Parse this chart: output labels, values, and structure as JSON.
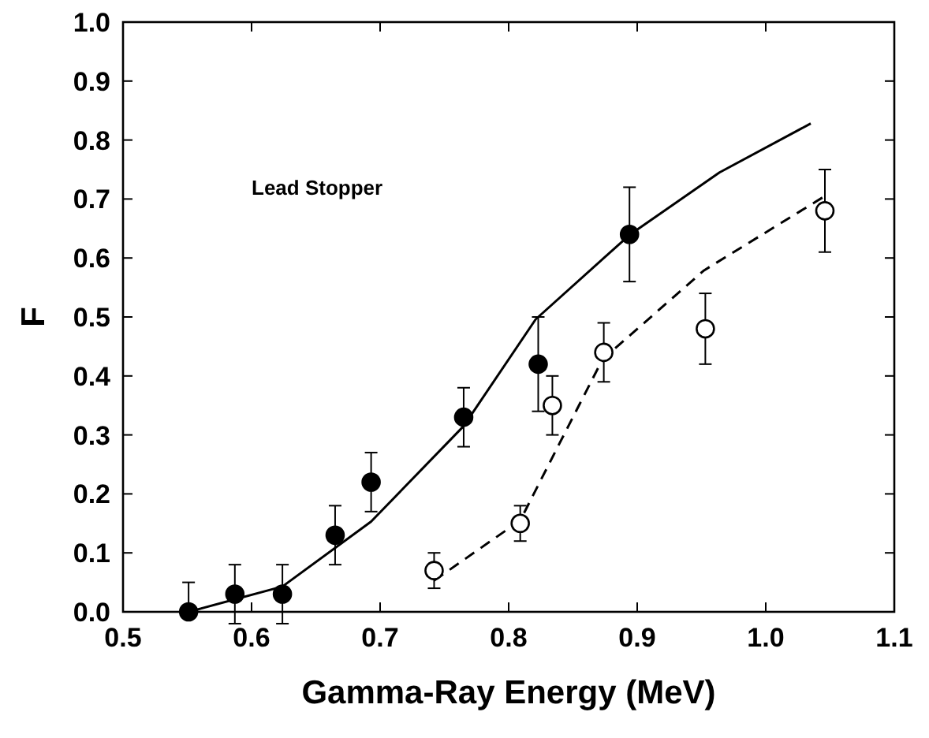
{
  "chart_data": {
    "type": "scatter",
    "xlabel": "Gamma-Ray Energy (MeV)",
    "ylabel": "F",
    "annotations": [
      "Lead Stopper"
    ],
    "xlim": [
      0.5,
      1.1
    ],
    "xticks": [
      0.5,
      0.6,
      0.7,
      0.8,
      0.9,
      {
        "value": 1.0,
        "label": "1.0"
      },
      1.1
    ],
    "ylim": [
      0,
      1
    ],
    "yticks": [
      {
        "value": 0,
        "label": "0.0"
      },
      0.1,
      0.2,
      0.3,
      0.4,
      0.5,
      0.6,
      0.7,
      0.8,
      0.9,
      {
        "value": 1,
        "label": "1.0"
      }
    ],
    "series": [
      {
        "marker": "circle",
        "color": "#000000",
        "x": [
          0.551,
          0.587,
          0.624,
          0.665,
          0.693,
          0.765,
          0.823,
          0.894
        ],
        "values": [
          0.0,
          0.03,
          0.03,
          0.13,
          0.22,
          0.33,
          0.42,
          0.64
        ],
        "errors": [
          [
            0,
            0.05
          ],
          0.05,
          0.05,
          0.05,
          0.05,
          0.05,
          0.08,
          0.08
        ]
      },
      {
        "marker": "circle",
        "color": "#ffffff",
        "x": [
          0.742,
          0.809,
          0.834,
          0.874,
          0.953,
          1.046
        ],
        "values": [
          0.07,
          0.15,
          0.35,
          0.44,
          0.48,
          0.68
        ],
        "errors": [
          0.03,
          0.03,
          0.05,
          0.05,
          0.06,
          0.07
        ]
      },
      {
        "type": "line",
        "line_style": "solid",
        "color": "#000000",
        "x": [
          0.551,
          0.624,
          0.693,
          0.765,
          0.821,
          0.894,
          0.964,
          1.035
        ],
        "values": [
          0.0,
          0.043,
          0.153,
          0.315,
          0.496,
          0.639,
          0.745,
          0.828
        ]
      },
      {
        "type": "line",
        "line_style": "dashed",
        "color": "#000000",
        "x": [
          0.742,
          0.809,
          0.838,
          0.873,
          0.952,
          1.046
        ],
        "values": [
          0.053,
          0.155,
          0.279,
          0.428,
          0.579,
          0.705
        ]
      }
    ]
  }
}
